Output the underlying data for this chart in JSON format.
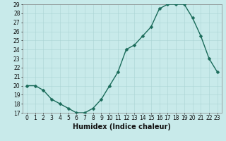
{
  "x": [
    0,
    1,
    2,
    3,
    4,
    5,
    6,
    7,
    8,
    9,
    10,
    11,
    12,
    13,
    14,
    15,
    16,
    17,
    18,
    19,
    20,
    21,
    22,
    23
  ],
  "y": [
    20,
    20,
    19.5,
    18.5,
    18,
    17.5,
    17,
    17,
    17.5,
    18.5,
    20,
    21.5,
    24,
    24.5,
    25.5,
    26.5,
    28.5,
    29,
    29,
    29,
    27.5,
    25.5,
    23,
    21.5
  ],
  "line_color": "#1a6b5a",
  "marker_color": "#1a6b5a",
  "bg_color": "#c8eaea",
  "grid_color": "#aad4d4",
  "grid_minor_color": "#bde0e0",
  "xlabel": "Humidex (Indice chaleur)",
  "ylim": [
    17,
    29
  ],
  "yticks": [
    17,
    18,
    19,
    20,
    21,
    22,
    23,
    24,
    25,
    26,
    27,
    28,
    29
  ],
  "xticks": [
    0,
    1,
    2,
    3,
    4,
    5,
    6,
    7,
    8,
    9,
    10,
    11,
    12,
    13,
    14,
    15,
    16,
    17,
    18,
    19,
    20,
    21,
    22,
    23
  ],
  "font_color": "#111111",
  "xlabel_fontsize": 7,
  "tick_fontsize": 5.5,
  "linewidth": 1.0,
  "markersize": 2.5
}
